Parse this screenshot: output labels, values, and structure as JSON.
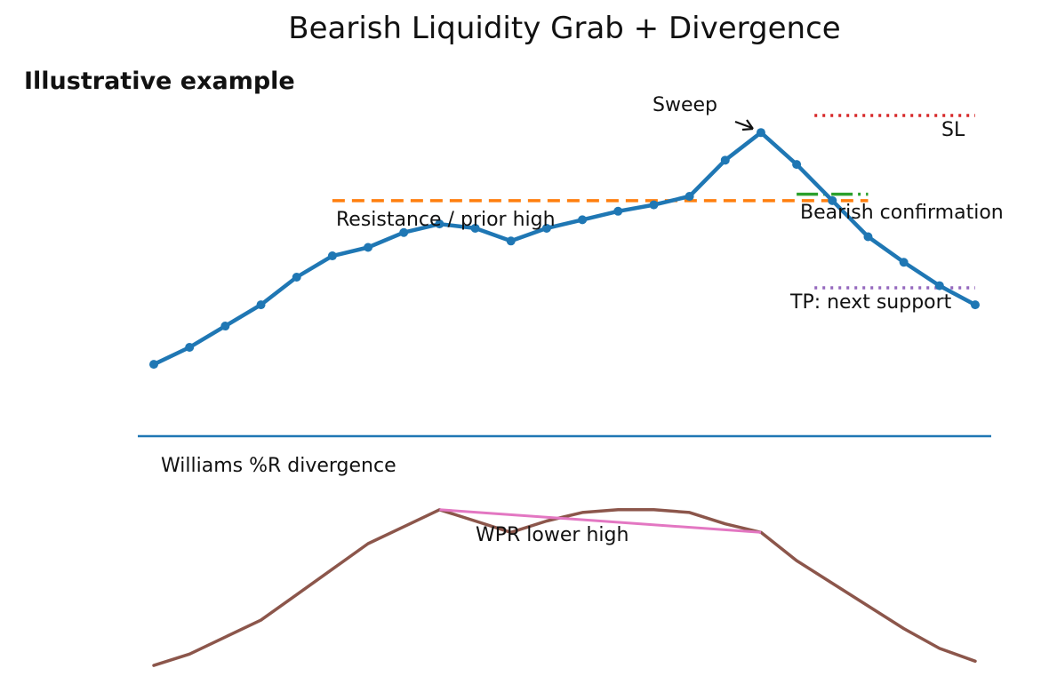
{
  "chart_data": {
    "type": "line",
    "title": "Bearish Liquidity Grab + Divergence",
    "subtitle": "Illustrative example",
    "axes_visible": false,
    "grid": false,
    "legend": "none",
    "colors": {
      "price": "#1f77b4",
      "resistance": "#ff7f0e",
      "confirmation": "#2ca02c",
      "stop_loss": "#d62728",
      "take_profit": "#9467bd",
      "wpr": "#8c564b",
      "wpr_divergence": "#e377c2",
      "separator": "#1f77b4",
      "text": "#111111"
    },
    "price_panel": {
      "x": [
        0,
        1,
        2,
        3,
        4,
        5,
        6,
        7,
        8,
        9,
        10,
        11,
        12,
        13,
        14,
        15,
        16,
        17,
        18,
        19,
        20,
        21,
        22,
        23
      ],
      "y": [
        100.0,
        100.8,
        101.8,
        102.8,
        104.1,
        105.1,
        105.5,
        106.2,
        106.6,
        106.4,
        105.8,
        106.4,
        106.8,
        107.2,
        107.5,
        107.9,
        109.6,
        110.9,
        109.4,
        107.7,
        106.0,
        104.8,
        103.7,
        102.8
      ],
      "resistance": {
        "level": 107.7,
        "x_range": [
          5,
          20
        ],
        "label": "Resistance / prior high"
      },
      "confirmation": {
        "level": 108.0,
        "x_range": [
          18,
          20
        ],
        "label": "Bearish confirmation"
      },
      "stop_loss": {
        "level": 111.7,
        "x_range": [
          18.5,
          23
        ],
        "label": "SL"
      },
      "take_profit": {
        "level": 103.6,
        "x_range": [
          18.5,
          23
        ],
        "label": "TP: next support"
      },
      "sweep": {
        "label": "Sweep",
        "points_to_x": 17
      },
      "ylim": [
        97.5,
        114.0
      ]
    },
    "indicator_panel": {
      "label": "Williams %R divergence",
      "x": [
        0,
        1,
        2,
        3,
        4,
        5,
        6,
        7,
        8,
        9,
        10,
        11,
        12,
        13,
        14,
        15,
        16,
        17,
        18,
        19,
        20,
        21,
        22,
        23
      ],
      "y": [
        -95.0,
        -91.0,
        -85.0,
        -79.0,
        -70.0,
        -61.0,
        -52.0,
        -46.0,
        -40.0,
        -44.0,
        -48.0,
        -44.0,
        -41.0,
        -40.0,
        -40.0,
        -41.0,
        -45.0,
        -48.0,
        -58.0,
        -66.0,
        -74.0,
        -82.0,
        -89.0,
        -93.5
      ],
      "divergence_line": {
        "x": [
          8,
          17
        ],
        "y": [
          -40.0,
          -48.0
        ],
        "label": "WPR lower high"
      },
      "ylim": [
        -100,
        -20
      ]
    }
  }
}
